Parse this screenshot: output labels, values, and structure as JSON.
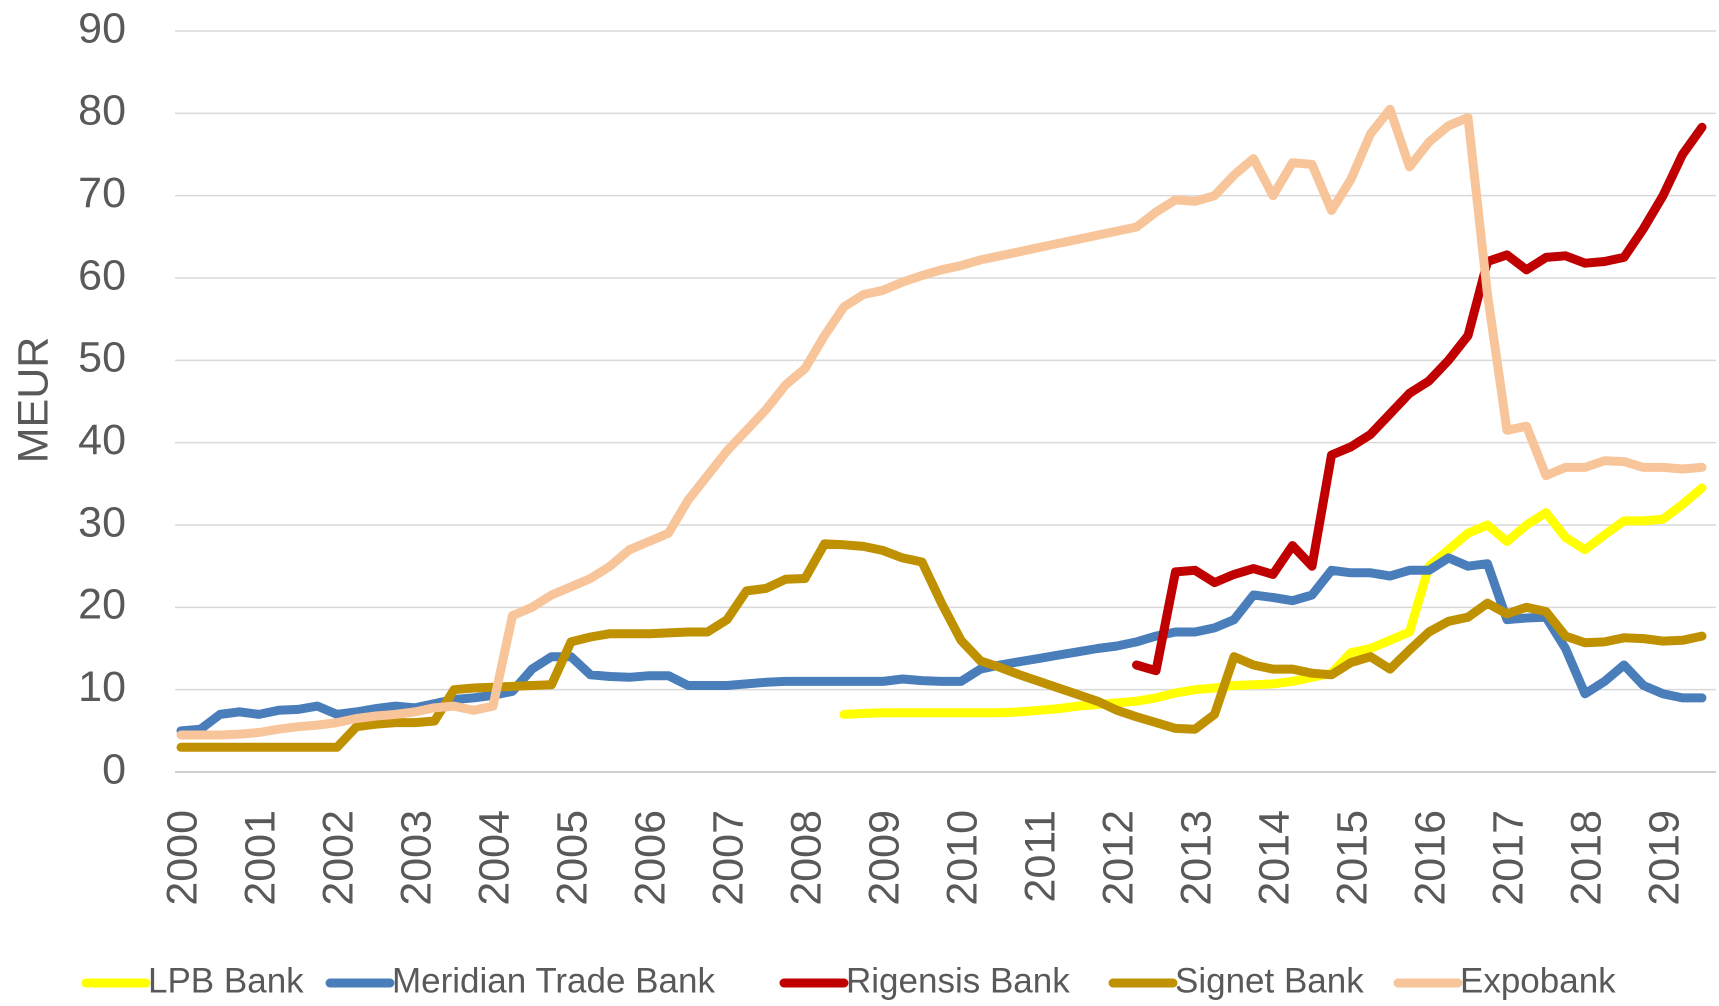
{
  "chart_data": {
    "type": "line",
    "y_label": "MEUR",
    "categories": [
      "2000",
      null,
      null,
      null,
      "2001",
      null,
      null,
      null,
      "2002",
      null,
      null,
      null,
      "2003",
      null,
      null,
      null,
      "2004",
      null,
      null,
      null,
      "2005",
      null,
      null,
      null,
      "2006",
      null,
      null,
      null,
      "2007",
      null,
      null,
      null,
      "2008",
      null,
      null,
      null,
      "2009",
      null,
      null,
      null,
      "2010",
      null,
      null,
      null,
      "2011",
      null,
      null,
      null,
      "2012",
      null,
      null,
      null,
      "2013",
      null,
      null,
      null,
      "2014",
      null,
      null,
      null,
      "2015",
      null,
      null,
      null,
      "2016",
      null,
      null,
      null,
      "2017",
      null,
      null,
      null,
      "2018",
      null,
      null,
      null,
      "2019",
      null,
      null
    ],
    "ylim": [
      0,
      90
    ],
    "yticks": [
      0,
      10,
      20,
      30,
      40,
      50,
      60,
      70,
      80,
      90
    ],
    "grid": true,
    "legend": "bottom",
    "series": [
      {
        "name": "LPB Bank",
        "color": "#ffff00",
        "values": [
          null,
          null,
          null,
          null,
          null,
          null,
          null,
          null,
          null,
          null,
          null,
          null,
          null,
          null,
          null,
          null,
          null,
          null,
          null,
          null,
          null,
          null,
          null,
          null,
          null,
          null,
          null,
          null,
          null,
          null,
          null,
          null,
          null,
          null,
          7,
          7.1,
          7.2,
          7.2,
          7.2,
          7.2,
          7.2,
          7.2,
          7.2,
          7.3,
          7.5,
          7.7,
          8,
          8.2,
          8.4,
          8.6,
          9,
          9.6,
          10,
          10.2,
          10.5,
          10.6,
          10.7,
          11,
          11.5,
          12,
          14.5,
          15,
          16,
          17,
          25,
          27,
          29,
          30,
          28,
          30,
          31.5,
          28.5,
          27,
          28.8,
          30.5,
          30.5,
          30.7,
          32.5,
          34.5
        ]
      },
      {
        "name": "Meridian Trade Bank",
        "color": "#4a7ebb",
        "values": [
          5,
          5.2,
          7,
          7.3,
          7,
          7.5,
          7.6,
          8,
          7,
          7.3,
          7.7,
          8,
          7.8,
          8.3,
          8.8,
          9,
          9.3,
          9.8,
          12.5,
          14,
          14,
          11.8,
          11.6,
          11.5,
          11.7,
          11.7,
          10.5,
          10.5,
          10.5,
          10.7,
          10.9,
          11,
          11,
          11,
          11,
          11,
          11,
          11.3,
          11.1,
          11,
          11,
          12.5,
          13,
          13.4,
          13.8,
          14.2,
          14.6,
          15,
          15.3,
          15.8,
          16.5,
          17,
          17,
          17.5,
          18.5,
          21.5,
          21.2,
          20.8,
          21.5,
          24.5,
          24.2,
          24.2,
          23.8,
          24.5,
          24.5,
          26,
          25,
          25.3,
          18.5,
          18.7,
          18.8,
          15,
          9.5,
          11,
          13,
          10.5,
          9.5,
          9,
          9
        ]
      },
      {
        "name": "Rigensis Bank",
        "color": "#c00000",
        "values": [
          null,
          null,
          null,
          null,
          null,
          null,
          null,
          null,
          null,
          null,
          null,
          null,
          null,
          null,
          null,
          null,
          null,
          null,
          null,
          null,
          null,
          null,
          null,
          null,
          null,
          null,
          null,
          null,
          null,
          null,
          null,
          null,
          null,
          null,
          null,
          null,
          null,
          null,
          null,
          null,
          null,
          null,
          null,
          null,
          null,
          null,
          null,
          null,
          null,
          13,
          12.3,
          24.3,
          24.5,
          23,
          24,
          24.7,
          24,
          27.5,
          25,
          38.5,
          39.5,
          41,
          43.5,
          46,
          47.5,
          50,
          53,
          62,
          62.8,
          61,
          62.5,
          62.7,
          61.8,
          62,
          62.5,
          66,
          70,
          75,
          78.3
        ]
      },
      {
        "name": "Signet Bank",
        "color": "#bf9000",
        "values": [
          3,
          3,
          3,
          3,
          3,
          3,
          3,
          3,
          3,
          5.5,
          5.8,
          6,
          6,
          6.2,
          10,
          10.2,
          10.3,
          10.4,
          10.5,
          10.6,
          15.8,
          16.4,
          16.8,
          16.8,
          16.8,
          16.9,
          17,
          17,
          18.5,
          22,
          22.3,
          23.4,
          23.5,
          27.7,
          27.6,
          27.4,
          26.9,
          26,
          25.5,
          20.5,
          16,
          13.5,
          12.7,
          11.8,
          11,
          10.2,
          9.4,
          8.6,
          7.5,
          6.7,
          6,
          5.3,
          5.2,
          7,
          14,
          13,
          12.5,
          12.5,
          12,
          11.8,
          13.3,
          14,
          12.5,
          14.8,
          17,
          18.3,
          18.8,
          20.5,
          19.2,
          20,
          19.5,
          16.5,
          15.7,
          15.8,
          16.3,
          16.2,
          15.9,
          16,
          16.5
        ]
      },
      {
        "name": "Expobank",
        "color": "#f8c59a",
        "values": [
          4.5,
          4.5,
          4.5,
          4.6,
          4.8,
          5.2,
          5.5,
          5.7,
          6,
          6.5,
          6.8,
          7,
          7.3,
          7.8,
          8,
          7.5,
          8,
          19,
          20,
          21.5,
          22.5,
          23.5,
          25,
          27,
          28,
          29,
          33,
          36,
          39,
          41.5,
          44,
          47,
          49,
          53,
          56.5,
          58,
          58.5,
          59.5,
          60.3,
          61,
          61.5,
          62.2,
          62.7,
          63.2,
          63.7,
          64.2,
          64.7,
          65.2,
          65.7,
          66.2,
          68,
          69.5,
          69.3,
          70,
          72.5,
          74.5,
          70,
          74,
          73.8,
          68.2,
          72,
          77.5,
          80.5,
          73.5,
          76.5,
          78.5,
          79.5,
          58,
          41.5,
          42,
          36,
          37,
          37,
          37.8,
          37.7,
          37,
          37,
          36.8,
          37
        ]
      }
    ]
  }
}
